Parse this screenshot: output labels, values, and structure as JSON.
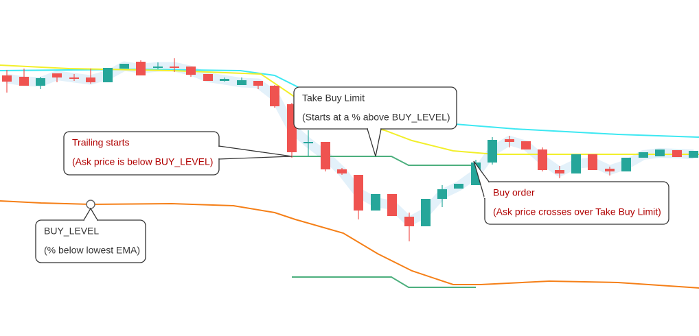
{
  "callouts": [
    {
      "title": "Take Buy Limit",
      "subtitle": "(Starts at a % above BUY_LEVEL)"
    },
    {
      "title": "Trailing starts",
      "subtitle": "(Ask price is below BUY_LEVEL)"
    },
    {
      "title": "BUY_LEVEL",
      "subtitle": "(% below lowest EMA)"
    },
    {
      "title": "Buy order",
      "subtitle": "(Ask price crosses over Take Buy Limit)"
    }
  ]
}
